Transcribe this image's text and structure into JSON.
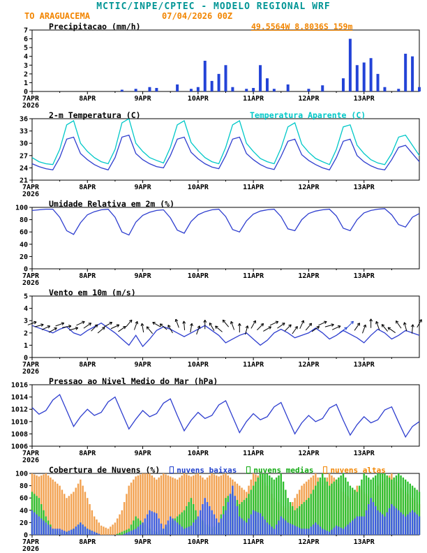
{
  "header": {
    "title": "MCTIC/INPE/CPTEC - MODELO REGIONAL WRF",
    "station": "TO ARAGUACEMA",
    "run": "07/04/2026 00Z",
    "coords": "49.5564W 8.8036S 159m"
  },
  "colors": {
    "title_teal": "#009595",
    "orange_text": "#f28500",
    "line_blue": "#2e3ecf",
    "cyan": "#00c8c8",
    "precip_bar_blue": "#2343d7"
  },
  "x_axis": {
    "total_hours": 168,
    "step_hours": 3,
    "tick_hours": [
      0,
      24,
      48,
      72,
      96,
      120,
      144
    ],
    "tick_labels": [
      "7APR",
      "8APR",
      "9APR",
      "10APR",
      "11APR",
      "12APR",
      "13APR"
    ],
    "year_label": "2026"
  },
  "chart_data": [
    {
      "type": "bar",
      "render": "bar",
      "title": "Precipitacao (mm/h)",
      "ylim": [
        0,
        7
      ],
      "yticks": [
        0,
        1,
        2,
        3,
        4,
        5,
        6,
        7
      ],
      "color": "#2343d7",
      "values": [
        0,
        0,
        0,
        0,
        0,
        0,
        0,
        0,
        0,
        0,
        0,
        0,
        0,
        0.2,
        0,
        0.3,
        0,
        0.5,
        0.4,
        0,
        0,
        0.8,
        0,
        0.3,
        0.5,
        3.5,
        1.2,
        2.0,
        3.0,
        0.5,
        0,
        0.3,
        0.4,
        3.0,
        1.5,
        0.3,
        0,
        0.8,
        0,
        0,
        0.3,
        0,
        0.7,
        0,
        0,
        1.5,
        6.0,
        3.0,
        3.3,
        3.8,
        2.0,
        0.5,
        0,
        0.3,
        4.3,
        4.0,
        0.5
      ]
    },
    {
      "type": "line",
      "render": "line",
      "title": "2-m Temperatura (C)",
      "extra_label": "Temperatura Aparente (C)",
      "extra_label_color": "#00c8c8",
      "ylim": [
        21,
        36
      ],
      "yticks": [
        21,
        24,
        27,
        30,
        33,
        36
      ],
      "series": [
        {
          "name": "2-m Temperatura (C)",
          "color": "#2e3ecf",
          "values": [
            25.0,
            24.3,
            23.8,
            23.5,
            26.5,
            31.0,
            31.5,
            27.5,
            26.0,
            24.8,
            24.0,
            23.5,
            26.5,
            31.5,
            32.0,
            27.5,
            26.0,
            25.0,
            24.3,
            24.0,
            27.0,
            31.0,
            31.5,
            27.8,
            26.2,
            25.0,
            24.2,
            23.8,
            27.0,
            31.0,
            31.5,
            27.5,
            26.0,
            24.8,
            24.0,
            23.6,
            26.8,
            30.5,
            31.0,
            27.2,
            25.8,
            24.8,
            24.0,
            23.5,
            26.5,
            30.5,
            31.0,
            27.0,
            25.5,
            24.5,
            23.8,
            23.5,
            26.0,
            29.0,
            29.5,
            27.5,
            25.5
          ]
        },
        {
          "name": "Temperatura Aparente (C)",
          "color": "#00c8c8",
          "values": [
            26.5,
            25.5,
            25.0,
            24.8,
            28.5,
            34.5,
            35.5,
            30.0,
            28.0,
            26.5,
            25.5,
            25.0,
            28.5,
            35.0,
            36.0,
            30.0,
            28.0,
            26.5,
            25.8,
            25.2,
            29.0,
            34.5,
            35.5,
            30.2,
            28.2,
            26.5,
            25.5,
            25.0,
            29.0,
            34.5,
            35.5,
            30.0,
            28.0,
            26.3,
            25.5,
            25.0,
            28.8,
            34.0,
            35.0,
            29.8,
            27.8,
            26.3,
            25.5,
            24.8,
            28.5,
            34.0,
            34.5,
            29.5,
            27.5,
            26.0,
            25.2,
            24.8,
            27.5,
            31.5,
            32.0,
            29.5,
            27.0
          ]
        }
      ]
    },
    {
      "type": "line",
      "render": "line",
      "title": "Umidade Relativa em 2m (%)",
      "ylim": [
        0,
        100
      ],
      "yticks": [
        0,
        20,
        40,
        60,
        80,
        100
      ],
      "series": [
        {
          "name": "Umidade Relativa em 2m (%)",
          "color": "#2e3ecf",
          "values": [
            95,
            96,
            97,
            97,
            84,
            62,
            56,
            75,
            88,
            93,
            96,
            97,
            84,
            60,
            55,
            76,
            87,
            92,
            95,
            96,
            83,
            63,
            58,
            77,
            88,
            93,
            96,
            97,
            85,
            64,
            60,
            78,
            89,
            94,
            96,
            97,
            85,
            65,
            62,
            80,
            90,
            94,
            96,
            97,
            86,
            66,
            62,
            80,
            91,
            95,
            97,
            98,
            88,
            72,
            68,
            84,
            90
          ]
        }
      ]
    },
    {
      "type": "line",
      "render": "wind",
      "title": "Vento em 10m (m/s)",
      "ylim": [
        0,
        5
      ],
      "yticks": [
        0,
        1,
        2,
        3,
        4,
        5
      ],
      "barb_y": 2.5,
      "barb_color": "#000000",
      "blue_color": "#2040cc",
      "blue_barb_indices": [
        45,
        46
      ],
      "barb_dirs_deg": [
        20,
        15,
        25,
        30,
        20,
        10,
        15,
        25,
        35,
        45,
        40,
        30,
        25,
        35,
        50,
        70,
        100,
        130,
        150,
        140,
        120,
        110,
        95,
        80,
        70,
        90,
        120,
        140,
        130,
        110,
        90,
        75,
        60,
        45,
        30,
        25,
        35,
        45,
        55,
        65,
        50,
        35,
        25,
        15,
        25,
        35,
        45,
        55,
        70,
        90,
        110,
        130,
        145,
        125,
        105,
        85,
        60
      ],
      "series": [
        {
          "name": "Vento em 10m (m/s)",
          "color": "#2e3ecf",
          "values": [
            2.6,
            2.4,
            2.2,
            2.0,
            2.3,
            2.5,
            2.0,
            1.8,
            2.2,
            2.5,
            2.8,
            2.4,
            2.0,
            1.5,
            1.0,
            1.8,
            0.9,
            1.5,
            2.2,
            2.5,
            2.3,
            2.0,
            1.7,
            2.0,
            2.3,
            2.6,
            2.2,
            1.8,
            1.2,
            1.5,
            1.8,
            2.0,
            1.5,
            1.0,
            1.4,
            2.0,
            2.3,
            2.0,
            1.6,
            1.8,
            2.0,
            2.4,
            2.0,
            1.5,
            1.8,
            2.2,
            1.9,
            1.6,
            1.2,
            1.8,
            2.3,
            2.0,
            1.5,
            1.8,
            2.2,
            2.0,
            1.8
          ]
        }
      ]
    },
    {
      "type": "line",
      "render": "line",
      "title": "Pressao ao Nivel Medio do Mar (hPa)",
      "ylim": [
        1006,
        1016
      ],
      "yticks": [
        1006,
        1008,
        1010,
        1012,
        1014,
        1016
      ],
      "series": [
        {
          "name": "Pressao ao Nivel Medio do Mar (hPa)",
          "color": "#2e3ecf",
          "values": [
            1012.3,
            1011.2,
            1011.8,
            1013.5,
            1014.4,
            1011.8,
            1009.2,
            1010.8,
            1012.0,
            1011.0,
            1011.5,
            1013.2,
            1014.0,
            1011.4,
            1008.8,
            1010.4,
            1011.8,
            1010.8,
            1011.3,
            1013.0,
            1013.7,
            1011.0,
            1008.5,
            1010.2,
            1011.5,
            1010.5,
            1011.0,
            1012.7,
            1013.4,
            1010.8,
            1008.2,
            1010.0,
            1011.3,
            1010.3,
            1010.8,
            1012.4,
            1013.1,
            1010.5,
            1008.0,
            1009.8,
            1011.0,
            1010.0,
            1010.5,
            1012.2,
            1012.8,
            1010.2,
            1007.8,
            1009.5,
            1010.8,
            1009.8,
            1010.3,
            1011.9,
            1012.4,
            1009.9,
            1007.5,
            1009.2,
            1010.0
          ]
        }
      ]
    },
    {
      "type": "bar",
      "render": "cloud",
      "title": "Cobertura de Nuvens (%)",
      "ylim": [
        0,
        100
      ],
      "yticks": [
        0,
        20,
        40,
        60,
        80,
        100
      ],
      "legend": [
        {
          "label": "nuvens baixas",
          "color": "#2040cc"
        },
        {
          "label": "nuvens medias",
          "color": "#11aa11"
        },
        {
          "label": "nuvens altas",
          "color": "#f28500"
        }
      ],
      "series": [
        {
          "name": "nuvens altas",
          "color": "#f2a14f",
          "values": [
            100,
            95,
            100,
            90,
            80,
            60,
            70,
            90,
            60,
            30,
            15,
            10,
            20,
            40,
            80,
            95,
            100,
            100,
            90,
            100,
            95,
            90,
            100,
            95,
            100,
            90,
            100,
            95,
            100,
            90,
            80,
            70,
            100,
            95,
            80,
            60,
            50,
            40,
            60,
            80,
            90,
            100,
            80,
            100,
            90,
            70,
            60,
            80,
            70,
            60,
            80,
            90,
            100,
            80,
            70,
            60,
            50
          ]
        },
        {
          "name": "nuvens medias",
          "color": "#2fbf2f",
          "values": [
            70,
            60,
            30,
            10,
            5,
            5,
            10,
            20,
            10,
            5,
            0,
            0,
            0,
            5,
            10,
            30,
            20,
            10,
            5,
            10,
            20,
            30,
            40,
            60,
            30,
            20,
            10,
            20,
            60,
            70,
            50,
            60,
            80,
            100,
            100,
            90,
            100,
            60,
            40,
            50,
            60,
            80,
            100,
            80,
            90,
            100,
            80,
            70,
            100,
            90,
            100,
            100,
            90,
            100,
            90,
            80,
            70
          ]
        },
        {
          "name": "nuvens baixas",
          "color": "#3c5ce0",
          "values": [
            40,
            30,
            20,
            10,
            10,
            5,
            10,
            20,
            10,
            5,
            0,
            0,
            0,
            0,
            5,
            10,
            20,
            40,
            35,
            10,
            30,
            20,
            10,
            15,
            30,
            60,
            40,
            20,
            40,
            80,
            30,
            20,
            40,
            35,
            20,
            10,
            30,
            20,
            15,
            10,
            10,
            20,
            10,
            5,
            15,
            10,
            20,
            30,
            30,
            60,
            40,
            30,
            50,
            40,
            30,
            40,
            30
          ]
        }
      ]
    }
  ]
}
